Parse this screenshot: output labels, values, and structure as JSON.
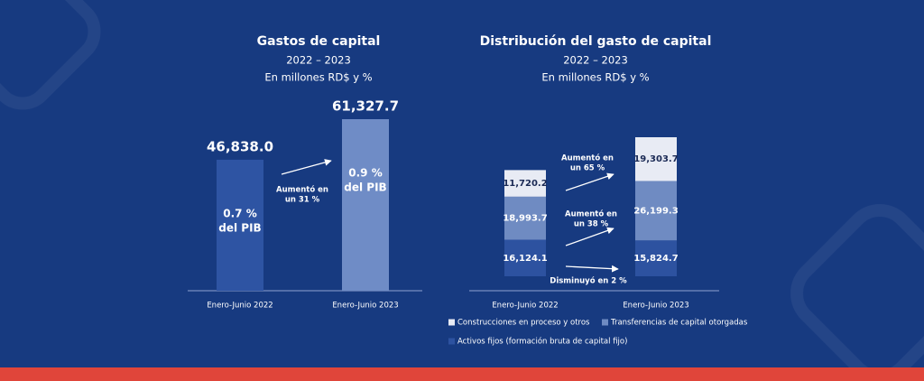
{
  "chart_data": [
    {
      "type": "bar",
      "title": "Gastos de capital",
      "subtitle": "2022 – 2023",
      "unit": "En millones RD$ y %",
      "categories": [
        "Enero-Junio 2022",
        "Enero-Junio 2023"
      ],
      "values": [
        46838.0,
        61327.7
      ],
      "value_labels": [
        "46,838.0",
        "61,327.7"
      ],
      "colors": [
        "#2e54a3",
        "#6f8cc6"
      ],
      "bar_labels": [
        [
          "0.7 %",
          "del PIB"
        ],
        [
          "0.9 %",
          "del PIB"
        ]
      ],
      "annotations": [
        [
          "Aumentó en",
          "un 31 %"
        ]
      ]
    },
    {
      "type": "stacked_bar",
      "title": "Distribución del gasto de capital",
      "subtitle": "2022 – 2023",
      "unit": "En millones RD$ y %",
      "categories": [
        "Enero-Junio 2022",
        "Enero-Junio 2023"
      ],
      "series": [
        {
          "name": "Activos fijos (formación bruta de capital fijo)",
          "color": "#2d52a0",
          "values": [
            16124.1,
            15824.7
          ],
          "value_labels": [
            "16,124.1",
            "15,824.7"
          ]
        },
        {
          "name": "Transferencias de capital otorgadas",
          "color": "#6f8bc2",
          "values": [
            18993.7,
            26199.3
          ],
          "value_labels": [
            "18,993.7",
            "26,199.3"
          ]
        },
        {
          "name": "Construcciones en proceso y otros",
          "color": "#e8ebf4",
          "values": [
            11720.2,
            19303.7
          ],
          "value_labels": [
            "11,720.2",
            "19,303.7"
          ]
        }
      ],
      "annotations": [
        [
          "Disminuyó en 2 %"
        ],
        [
          "Aumentó en",
          "un 38 %"
        ],
        [
          "Aumentó en",
          "un 65 %"
        ]
      ]
    }
  ]
}
